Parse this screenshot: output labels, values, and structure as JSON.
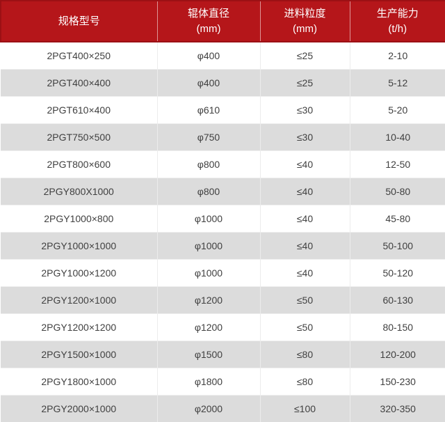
{
  "colors": {
    "header_bg": "#b5161a",
    "header_border_dark": "#9c1014",
    "header_text": "#ffffff",
    "row_bg": "#ffffff",
    "row_alt_bg": "#dcdcdc",
    "grid_line": "#ececec",
    "body_text": "#404040"
  },
  "chart_data": {
    "type": "table",
    "title": "",
    "columns": [
      {
        "label": "规格型号",
        "unit": ""
      },
      {
        "label": "辊体直径",
        "unit": "(mm)"
      },
      {
        "label": "进料粒度",
        "unit": "(mm)"
      },
      {
        "label": "生产能力",
        "unit": "(t/h)"
      }
    ],
    "rows": [
      [
        "2PGT400×250",
        "φ400",
        "≤25",
        "2-10"
      ],
      [
        "2PGT400×400",
        "φ400",
        "≤25",
        "5-12"
      ],
      [
        "2PGT610×400",
        "φ610",
        "≤30",
        "5-20"
      ],
      [
        "2PGT750×500",
        "φ750",
        "≤30",
        "10-40"
      ],
      [
        "2PGT800×600",
        "φ800",
        "≤40",
        "12-50"
      ],
      [
        "2PGY800X1000",
        "φ800",
        "≤40",
        "50-80"
      ],
      [
        "2PGY1000×800",
        "φ1000",
        "≤40",
        "45-80"
      ],
      [
        "2PGY1000×1000",
        "φ1000",
        "≤40",
        "50-100"
      ],
      [
        "2PGY1000×1200",
        "φ1000",
        "≤40",
        "50-120"
      ],
      [
        "2PGY1200×1000",
        "φ1200",
        "≤50",
        "60-130"
      ],
      [
        "2PGY1200×1200",
        "φ1200",
        "≤50",
        "80-150"
      ],
      [
        "2PGY1500×1000",
        "φ1500",
        "≤80",
        "120-200"
      ],
      [
        "2PGY1800×1000",
        "φ1800",
        "≤80",
        "150-230"
      ],
      [
        "2PGY2000×1000",
        "φ2000",
        "≤100",
        "320-350"
      ]
    ]
  }
}
